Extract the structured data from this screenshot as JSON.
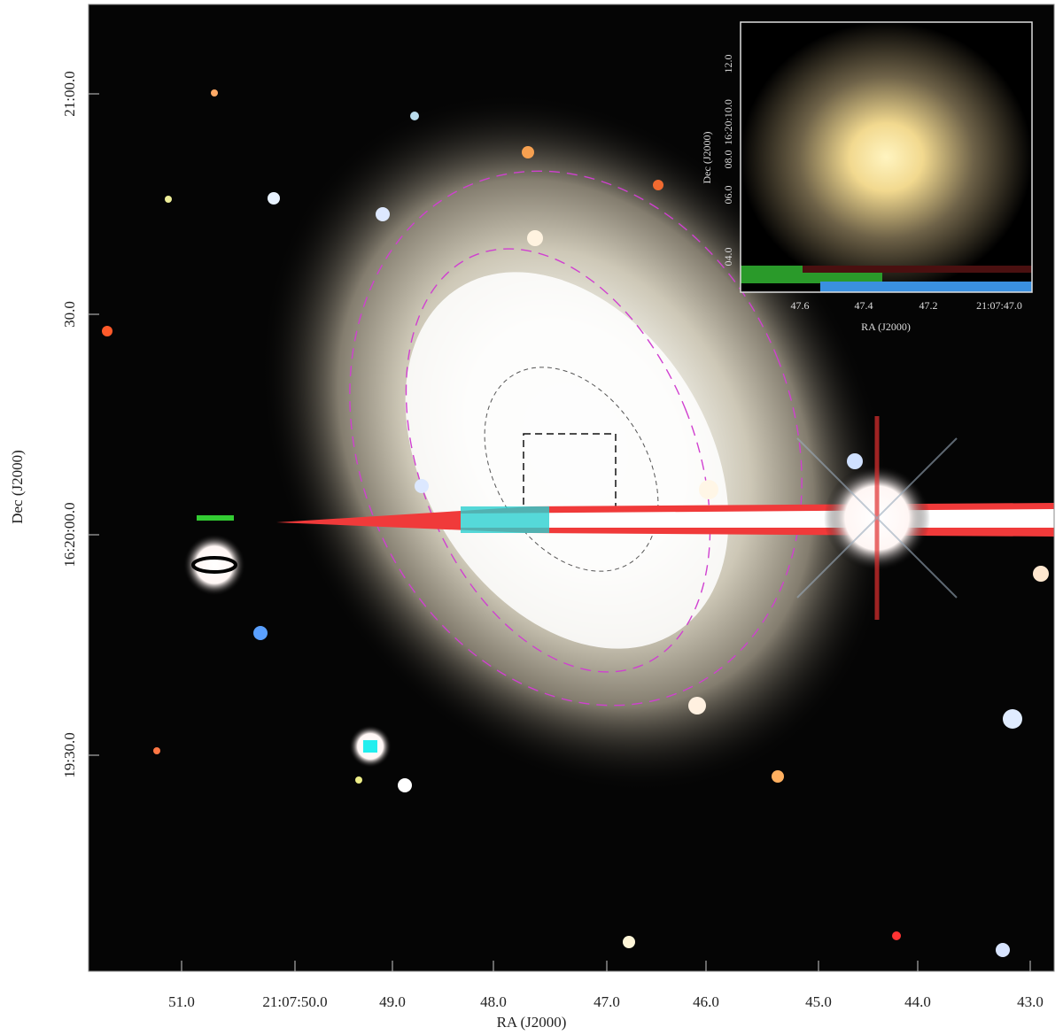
{
  "main": {
    "xlabel": "RA (J2000)",
    "ylabel": "Dec (J2000)",
    "xticks": [
      "51.0",
      "21:07:50.0",
      "49.0",
      "48.0",
      "47.0",
      "46.0",
      "45.0",
      "44.0",
      "43.0"
    ],
    "yticks": [
      "21:00.0",
      "30.0",
      "16:20:00.0",
      "19:30.0"
    ]
  },
  "inset": {
    "xlabel": "RA (J2000)",
    "ylabel": "Dec (J2000)",
    "xticks": [
      "47.6",
      "47.4",
      "47.2",
      "21:07:47.0"
    ],
    "yticks": [
      "12.0",
      "16:20:10.0",
      "08.0",
      "06.0",
      "04.0"
    ]
  }
}
